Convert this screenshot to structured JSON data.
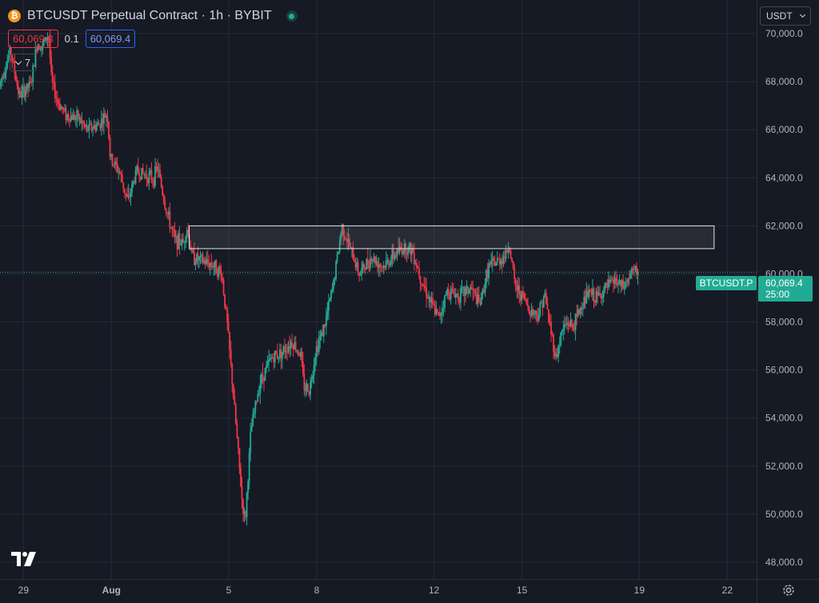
{
  "header": {
    "coin_icon_glyph": "₿",
    "title": "BTCUSDT Perpetual Contract · 1h · BYBIT"
  },
  "quote": {
    "bid": "60,069.3",
    "spread": "0.1",
    "ask": "60,069.4"
  },
  "indicators": {
    "count": "7"
  },
  "currency": {
    "selected": "USDT"
  },
  "price_label": {
    "symbol": "BTCUSDT.P",
    "price": "60,069.4",
    "countdown": "25:00"
  },
  "colors": {
    "background": "#161a25",
    "up": "#22ab94",
    "down": "#f23645",
    "grid": "#262a35",
    "axis_text": "#b2b5be"
  },
  "icons": {
    "logo": "tradingview-logo-icon",
    "settings": "gear-icon",
    "coin": "bitcoin-icon"
  },
  "chart_data": {
    "type": "candlestick",
    "title": "BTCUSDT Perpetual Contract · 1h · BYBIT",
    "timeframe": "1h",
    "y_ticks": [
      48000,
      50000,
      52000,
      54000,
      56000,
      58000,
      60000,
      62000,
      64000,
      66000,
      68000,
      70000
    ],
    "y_tick_labels": [
      "48,000.0",
      "50,000.0",
      "52,000.0",
      "54,000.0",
      "56,000.0",
      "58,000.0",
      "60,000.0",
      "62,000.0",
      "64,000.0",
      "66,000.0",
      "68,000.0",
      "70,000.0"
    ],
    "ylim": [
      47300,
      71400
    ],
    "x_ticks": [
      {
        "label": "29",
        "day": 29
      },
      {
        "label": "Aug",
        "day": 32
      },
      {
        "label": "5",
        "day": 36
      },
      {
        "label": "8",
        "day": 39
      },
      {
        "label": "12",
        "day": 43
      },
      {
        "label": "15",
        "day": 46
      },
      {
        "label": "19",
        "day": 50
      },
      {
        "label": "22",
        "day": 53
      }
    ],
    "x_unit": "days since start of July",
    "xlim": [
      28.2,
      54.0
    ],
    "last_price": 60069.4,
    "grid": true,
    "zone": {
      "day_start": 34.65,
      "day_end": 52.55,
      "price_low": 61050,
      "price_high": 62000
    },
    "trend": [
      [
        28.2,
        67800
      ],
      [
        28.6,
        69300
      ],
      [
        28.9,
        67400
      ],
      [
        29.3,
        67900
      ],
      [
        29.5,
        69600
      ],
      [
        29.7,
        69500
      ],
      [
        29.9,
        70000
      ],
      [
        30.0,
        68000
      ],
      [
        30.2,
        67200
      ],
      [
        30.5,
        66600
      ],
      [
        30.9,
        66500
      ],
      [
        31.2,
        66000
      ],
      [
        31.6,
        66200
      ],
      [
        31.9,
        66700
      ],
      [
        32.0,
        64800
      ],
      [
        32.3,
        64300
      ],
      [
        32.6,
        63000
      ],
      [
        32.9,
        64300
      ],
      [
        33.2,
        64100
      ],
      [
        33.5,
        64000
      ],
      [
        33.6,
        64500
      ],
      [
        33.9,
        62700
      ],
      [
        34.2,
        61400
      ],
      [
        34.5,
        61300
      ],
      [
        34.6,
        62000
      ],
      [
        34.8,
        60700
      ],
      [
        35.2,
        60500
      ],
      [
        35.5,
        60400
      ],
      [
        35.8,
        60000
      ],
      [
        36.0,
        57800
      ],
      [
        36.3,
        53500
      ],
      [
        36.5,
        50500
      ],
      [
        36.6,
        49700
      ],
      [
        36.8,
        53500
      ],
      [
        37.1,
        55500
      ],
      [
        37.5,
        56500
      ],
      [
        37.9,
        56800
      ],
      [
        38.2,
        57200
      ],
      [
        38.5,
        56600
      ],
      [
        38.6,
        55300
      ],
      [
        38.8,
        55200
      ],
      [
        39.0,
        56800
      ],
      [
        39.3,
        57800
      ],
      [
        39.6,
        59500
      ],
      [
        39.9,
        62000
      ],
      [
        40.2,
        61000
      ],
      [
        40.5,
        60000
      ],
      [
        40.9,
        60700
      ],
      [
        41.3,
        60300
      ],
      [
        41.7,
        60800
      ],
      [
        42.0,
        61100
      ],
      [
        42.3,
        61000
      ],
      [
        42.6,
        59800
      ],
      [
        43.0,
        58600
      ],
      [
        43.2,
        58200
      ],
      [
        43.5,
        59300
      ],
      [
        43.9,
        59100
      ],
      [
        44.3,
        59400
      ],
      [
        44.6,
        58700
      ],
      [
        44.9,
        60300
      ],
      [
        45.2,
        60500
      ],
      [
        45.5,
        60800
      ],
      [
        45.6,
        61300
      ],
      [
        45.8,
        59500
      ],
      [
        46.1,
        59000
      ],
      [
        46.3,
        58500
      ],
      [
        46.6,
        58300
      ],
      [
        46.8,
        59200
      ],
      [
        47.0,
        57800
      ],
      [
        47.2,
        56500
      ],
      [
        47.4,
        57600
      ],
      [
        47.6,
        58000
      ],
      [
        47.8,
        57800
      ],
      [
        48.0,
        58500
      ],
      [
        48.3,
        59200
      ],
      [
        48.6,
        59000
      ],
      [
        48.9,
        59400
      ],
      [
        49.2,
        59700
      ],
      [
        49.5,
        59400
      ],
      [
        49.8,
        60100
      ],
      [
        49.95,
        60069.4
      ]
    ]
  }
}
